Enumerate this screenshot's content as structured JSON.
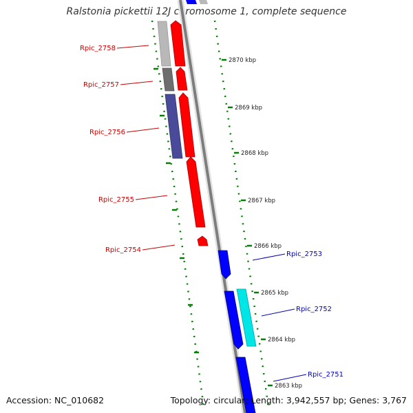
{
  "title": "Ralstonia pickettii 12J chromosome 1, complete sequence",
  "footer": {
    "accession": "Accession: NC_010682",
    "summary": "Topology: circular; Length: 3,942,557 bp; Genes: 3,767"
  },
  "colors": {
    "forward_gene": "#ff0000",
    "reverse_gene": "#0000ff",
    "forward_label": "#cc0000",
    "reverse_label": "#0000bb",
    "backbone": "#808080",
    "tick": "#008000",
    "cyan_feature": "#00e0e0",
    "navy_feature": "#4a4a9a",
    "gray_feature": "#b8b8b8",
    "dark_feature": "#707070"
  },
  "ruler": [
    {
      "label": "2870 kbp"
    },
    {
      "label": "2869 kbp"
    },
    {
      "label": "2868 kbp"
    },
    {
      "label": "2867 kbp"
    },
    {
      "label": "2866 kbp"
    },
    {
      "label": "2865 kbp"
    },
    {
      "label": "2864 kbp"
    },
    {
      "label": "2863 kbp"
    }
  ],
  "genes": [
    {
      "label": "Rpic_2758",
      "strand": "forward"
    },
    {
      "label": "Rpic_2757",
      "strand": "forward"
    },
    {
      "label": "Rpic_2756",
      "strand": "forward"
    },
    {
      "label": "Rpic_2755",
      "strand": "forward"
    },
    {
      "label": "Rpic_2754",
      "strand": "forward"
    },
    {
      "label": "Rpic_2753",
      "strand": "reverse"
    },
    {
      "label": "Rpic_2752",
      "strand": "reverse"
    },
    {
      "label": "Rpic_2751",
      "strand": "reverse"
    }
  ]
}
